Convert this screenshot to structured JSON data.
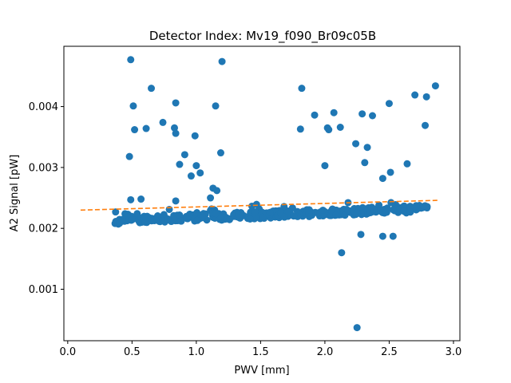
{
  "chart_data": {
    "type": "scatter",
    "title": "Detector Index: Mv19_f090_Br09c05B",
    "xlabel": "PWV [mm]",
    "ylabel": "A2 Signal [pW]",
    "xlim": [
      -0.03,
      3.05
    ],
    "ylim": [
      0.000155,
      0.00499
    ],
    "xticks": [
      0.0,
      0.5,
      1.0,
      1.5,
      2.0,
      2.5,
      3.0
    ],
    "xtick_labels": [
      "0.0",
      "0.5",
      "1.0",
      "1.5",
      "2.0",
      "2.5",
      "3.0"
    ],
    "yticks": [
      0.001,
      0.002,
      0.003,
      0.004
    ],
    "ytick_labels": [
      "0.001",
      "0.002",
      "0.003",
      "0.004"
    ],
    "grid": false,
    "colors": {
      "points": "#1f77b4",
      "fit": "#ff7f0e"
    },
    "series": [
      {
        "name": "data",
        "kind": "scatter",
        "outliers": [
          [
            0.49,
            0.00477
          ],
          [
            1.2,
            0.00474
          ],
          [
            0.51,
            0.00401
          ],
          [
            0.65,
            0.0043
          ],
          [
            0.84,
            0.00406
          ],
          [
            1.15,
            0.00401
          ],
          [
            0.52,
            0.00362
          ],
          [
            0.61,
            0.00364
          ],
          [
            0.74,
            0.00374
          ],
          [
            0.83,
            0.00365
          ],
          [
            0.84,
            0.00356
          ],
          [
            0.99,
            0.00352
          ],
          [
            0.48,
            0.00318
          ],
          [
            0.87,
            0.00305
          ],
          [
            0.91,
            0.00321
          ],
          [
            0.96,
            0.00286
          ],
          [
            1.0,
            0.00303
          ],
          [
            1.03,
            0.00291
          ],
          [
            1.19,
            0.00324
          ],
          [
            1.82,
            0.0043
          ],
          [
            1.81,
            0.00363
          ],
          [
            1.92,
            0.00386
          ],
          [
            2.02,
            0.00365
          ],
          [
            2.03,
            0.00362
          ],
          [
            2.07,
            0.0039
          ],
          [
            2.12,
            0.00366
          ],
          [
            2.0,
            0.00303
          ],
          [
            2.24,
            0.00339
          ],
          [
            2.29,
            0.00388
          ],
          [
            2.33,
            0.00333
          ],
          [
            2.37,
            0.00385
          ],
          [
            2.5,
            0.00405
          ],
          [
            2.64,
            0.00306
          ],
          [
            2.7,
            0.00419
          ],
          [
            2.78,
            0.00369
          ],
          [
            2.79,
            0.00416
          ],
          [
            2.86,
            0.00434
          ],
          [
            2.25,
            0.00037
          ],
          [
            2.13,
            0.0016
          ],
          [
            2.28,
            0.0019
          ],
          [
            2.45,
            0.00187
          ],
          [
            2.53,
            0.00187
          ],
          [
            0.49,
            0.00247
          ],
          [
            0.57,
            0.00248
          ],
          [
            0.84,
            0.00245
          ],
          [
            1.13,
            0.00266
          ],
          [
            1.16,
            0.00262
          ],
          [
            1.11,
            0.0025
          ],
          [
            2.31,
            0.00308
          ],
          [
            2.45,
            0.00282
          ],
          [
            2.51,
            0.00292
          ]
        ],
        "trend_band": {
          "x_start": 0.35,
          "x_end": 2.8,
          "y_start": 0.00212,
          "y_end": 0.00232,
          "spread": 0.00012,
          "count": 380
        }
      },
      {
        "name": "linear fit",
        "kind": "dashed-line",
        "x": [
          0.1,
          2.88
        ],
        "y": [
          0.0023,
          0.00246
        ]
      }
    ]
  }
}
